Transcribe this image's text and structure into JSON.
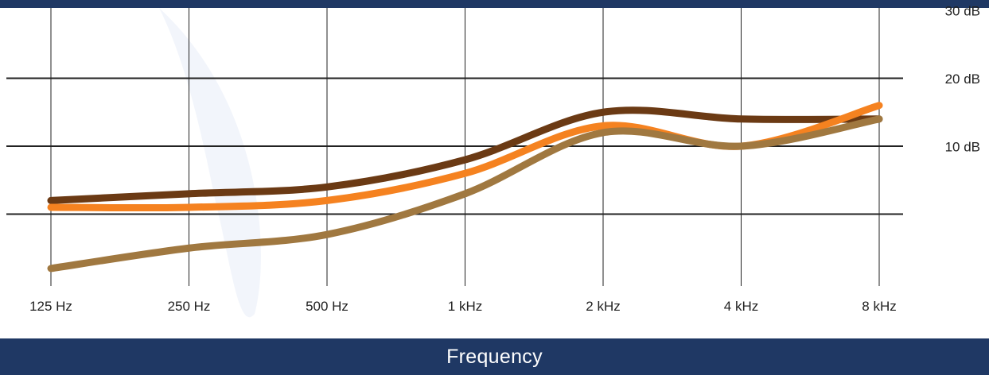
{
  "colors": {
    "band": "#1f3864",
    "gridline": "#222222",
    "watermark": "#f2f5fb"
  },
  "footer": {
    "label": "Frequency"
  },
  "chart_data": {
    "type": "line",
    "x": [
      "125 Hz",
      "250 Hz",
      "500 Hz",
      "1 kHz",
      "2 kHz",
      "4 kHz",
      "8 kHz"
    ],
    "y_ticks": [
      {
        "value": 10,
        "label": "10 dB"
      },
      {
        "value": 20,
        "label": "20 dB"
      },
      {
        "value": 30,
        "label": "30 dB"
      }
    ],
    "ylim": [
      0,
      40
    ],
    "grid": true,
    "series": [
      {
        "color": "#6b3a14",
        "values": [
          12,
          13,
          14,
          18,
          25,
          24,
          24
        ]
      },
      {
        "color": "#f58220",
        "values": [
          11,
          11,
          12,
          16,
          23,
          20,
          26
        ]
      },
      {
        "color": "#a07840",
        "values": [
          2,
          5,
          7,
          13,
          22,
          20,
          24
        ]
      }
    ]
  }
}
